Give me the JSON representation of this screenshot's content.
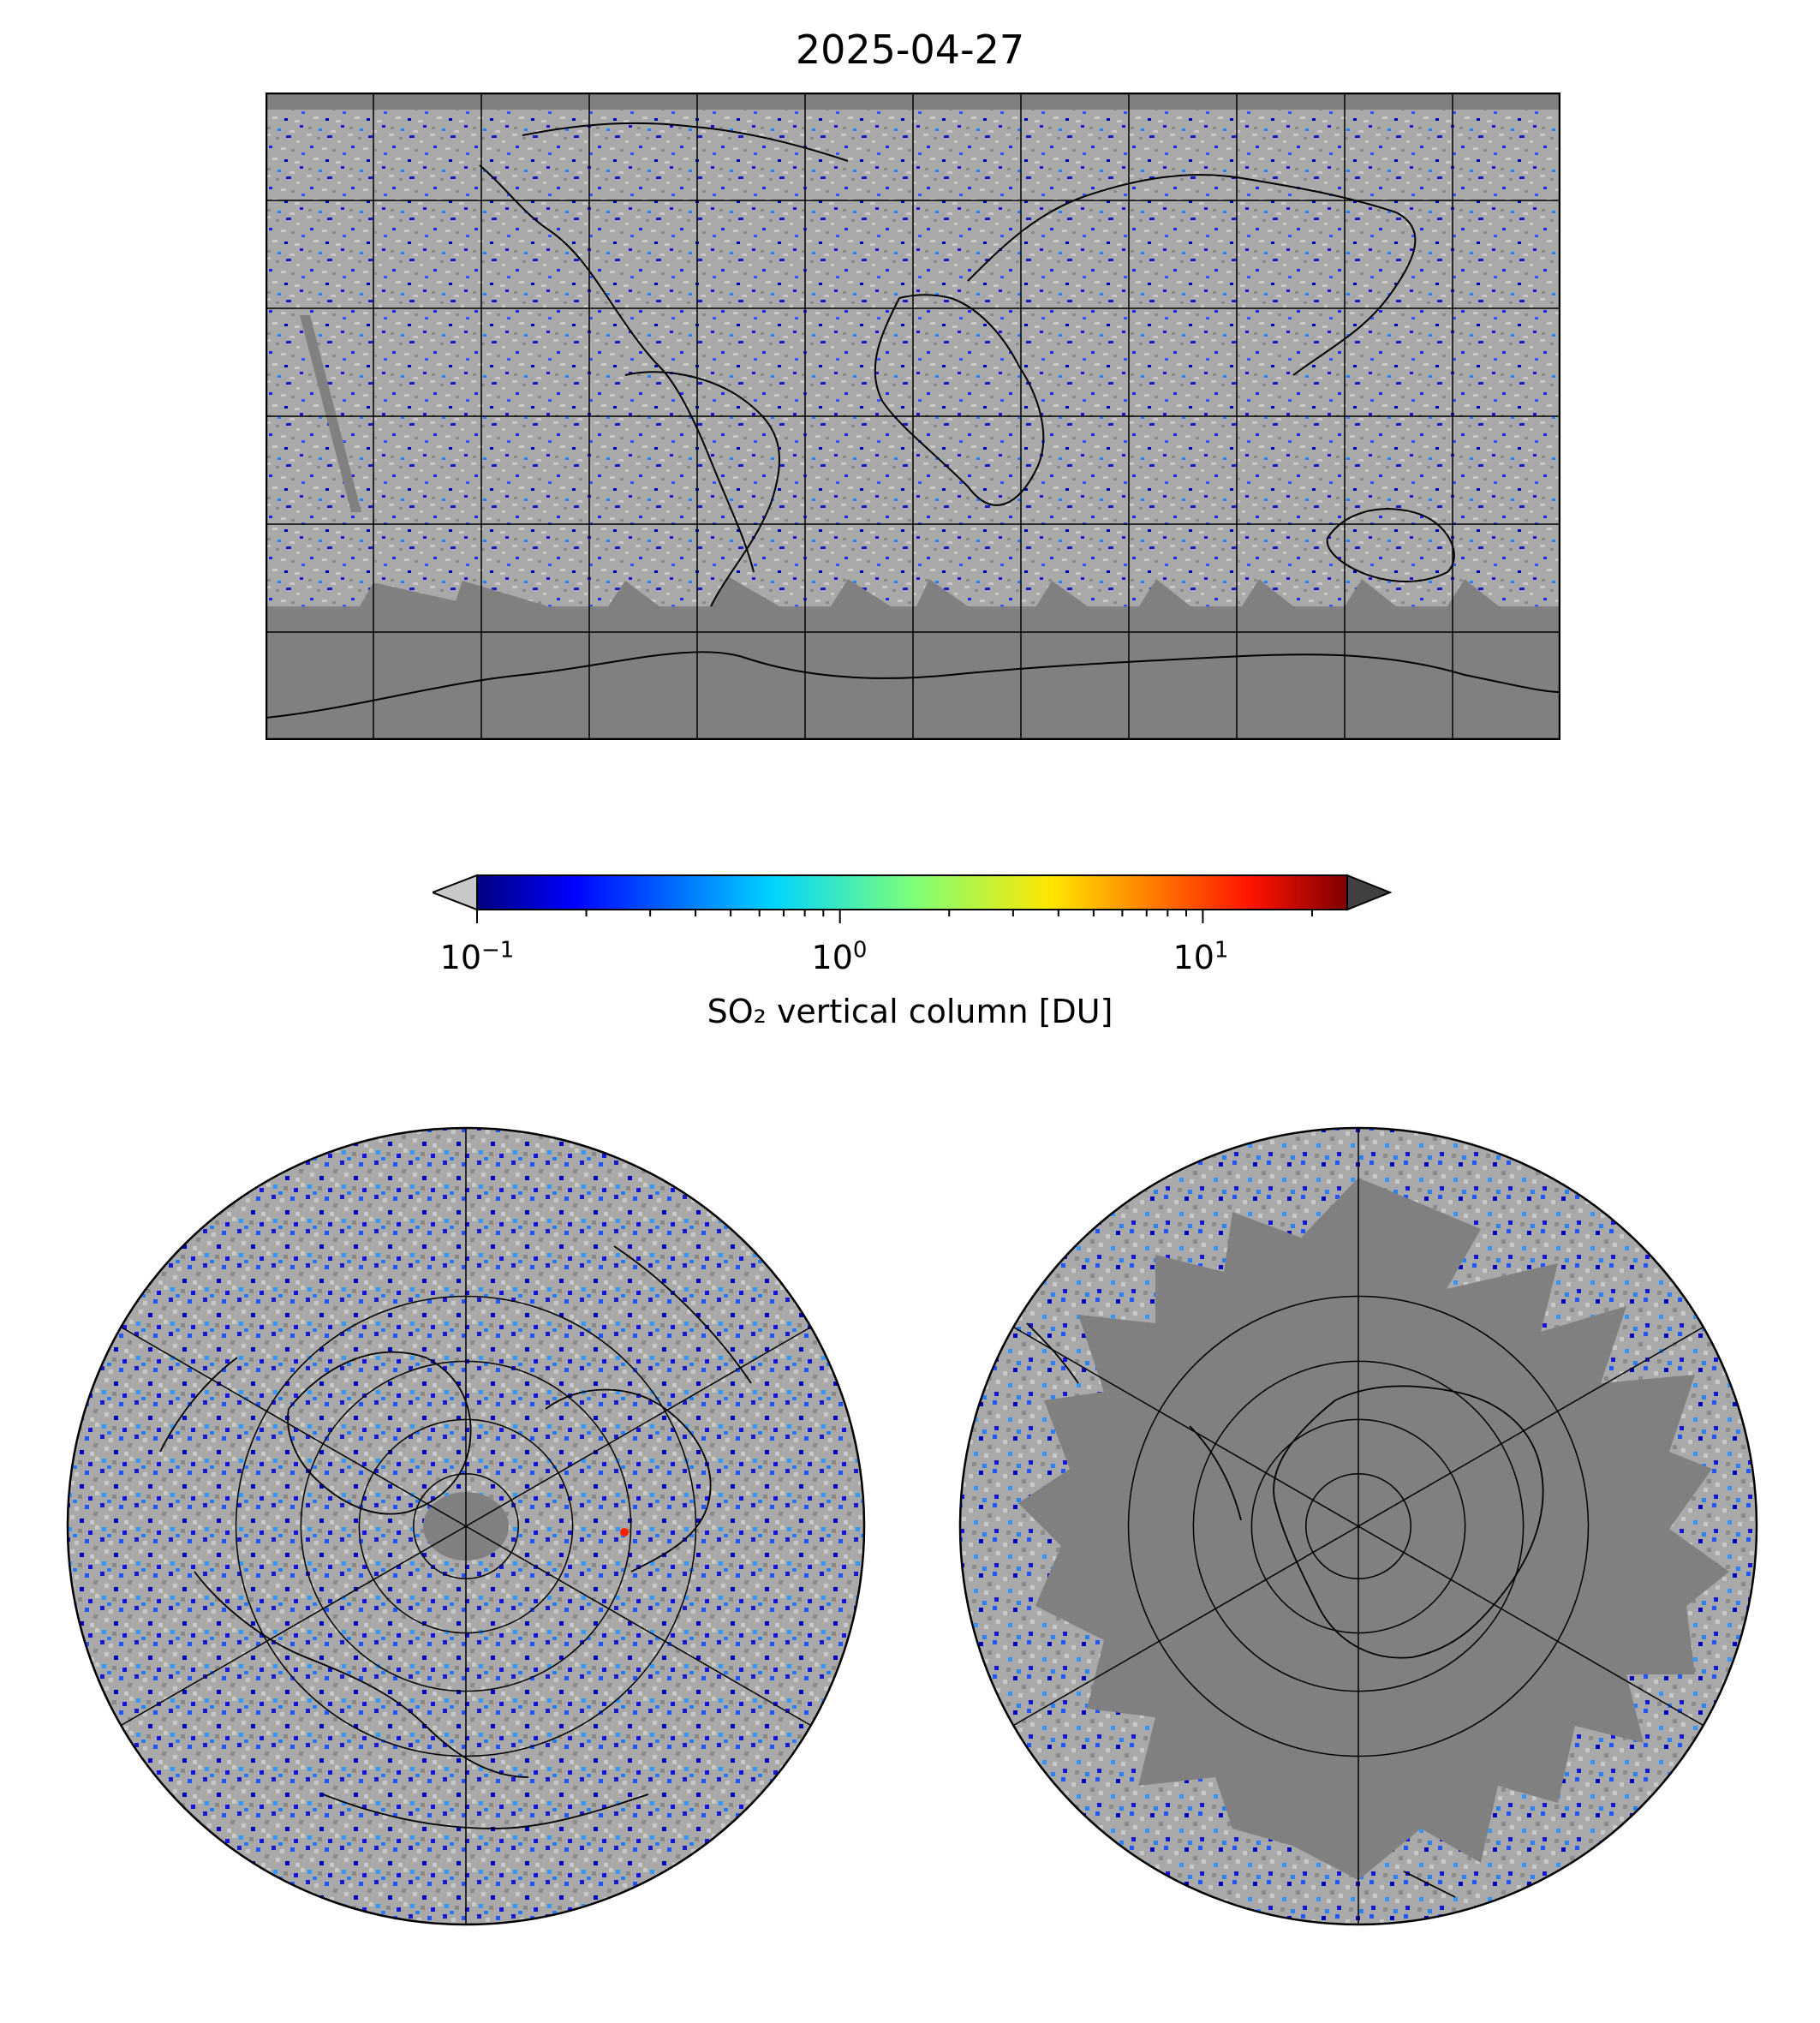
{
  "title": "2025-04-27",
  "colorbar": {
    "label": "SO₂ vertical column [DU]",
    "scale": "log",
    "range": [
      0.1,
      25
    ],
    "colormap": "jet",
    "under_color": "#c8c8c8",
    "over_color": "#404040",
    "ticks": [
      {
        "base": "10",
        "exp": "−1",
        "value": 0.1
      },
      {
        "base": "10",
        "exp": "0",
        "value": 1
      },
      {
        "base": "10",
        "exp": "1",
        "value": 10
      }
    ]
  },
  "colors": {
    "no_data": "#808080",
    "below_range": "#c0c0c0",
    "coastline": "#000000",
    "gridline": "#000000"
  },
  "maps": {
    "world": {
      "projection": "plate-carree",
      "lon_range": [
        -180,
        180
      ],
      "lat_range": [
        -90,
        90
      ],
      "grid_step_lon": 30,
      "grid_step_lat": 30
    },
    "north": {
      "projection": "north-polar-stereographic",
      "lat_circles": [
        30,
        45,
        60,
        75
      ],
      "meridians": 6
    },
    "south": {
      "projection": "south-polar-stereographic",
      "lat_circles": [
        -30,
        -45,
        -60,
        -75
      ],
      "meridians": 6
    }
  }
}
